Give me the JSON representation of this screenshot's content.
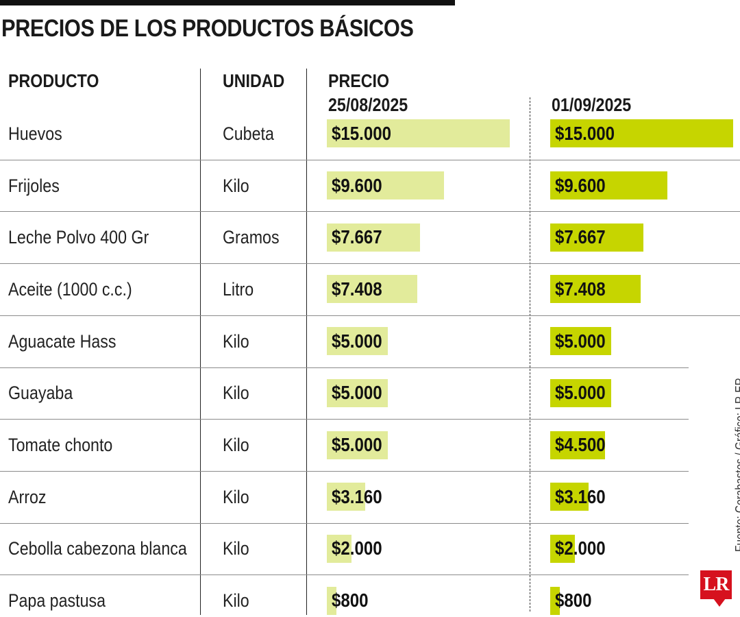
{
  "title": "PRECIOS DE LOS PRODUCTOS BÁSICOS",
  "columns": {
    "producto": "PRODUCTO",
    "unidad": "UNIDAD",
    "precio": "PRECIO",
    "date1": "25/08/2025",
    "date2": "01/09/2025"
  },
  "colors": {
    "bar_date1": "#e2eb9b",
    "bar_date2": "#c6d500",
    "logo": "#d6111e"
  },
  "source": "Fuente: Corabastos / Gráfico: LR-ER",
  "logo_text": "LR",
  "chart_data": {
    "type": "bar",
    "title": "PRECIOS DE LOS PRODUCTOS BÁSICOS",
    "xlabel": "",
    "ylabel": "PRECIO",
    "categories": [
      "Huevos",
      "Frijoles",
      "Leche Polvo 400 Gr",
      "Aceite (1000 c.c.)",
      "Aguacate Hass",
      "Guayaba",
      "Tomate chonto",
      "Arroz",
      "Cebolla cabezona blanca",
      "Papa pastusa"
    ],
    "units": [
      "Cubeta",
      "Kilo",
      "Gramos",
      "Litro",
      "Kilo",
      "Kilo",
      "Kilo",
      "Kilo",
      "Kilo",
      "Kilo"
    ],
    "ylim": [
      0,
      15000
    ],
    "series": [
      {
        "name": "25/08/2025",
        "values": [
          15000,
          9600,
          7667,
          7408,
          5000,
          5000,
          5000,
          3160,
          2000,
          800
        ],
        "labels": [
          "$15.000",
          "$9.600",
          "$7.667",
          "$7.408",
          "$5.000",
          "$5.000",
          "$5.000",
          "$3.160",
          "$2.000",
          "$800"
        ]
      },
      {
        "name": "01/09/2025",
        "values": [
          15000,
          9600,
          7667,
          7408,
          5000,
          5000,
          4500,
          3160,
          2000,
          800
        ],
        "labels": [
          "$15.000",
          "$9.600",
          "$7.667",
          "$7.408",
          "$5.000",
          "$5.000",
          "$4.500",
          "$3.160",
          "$2.000",
          "$800"
        ]
      }
    ]
  }
}
